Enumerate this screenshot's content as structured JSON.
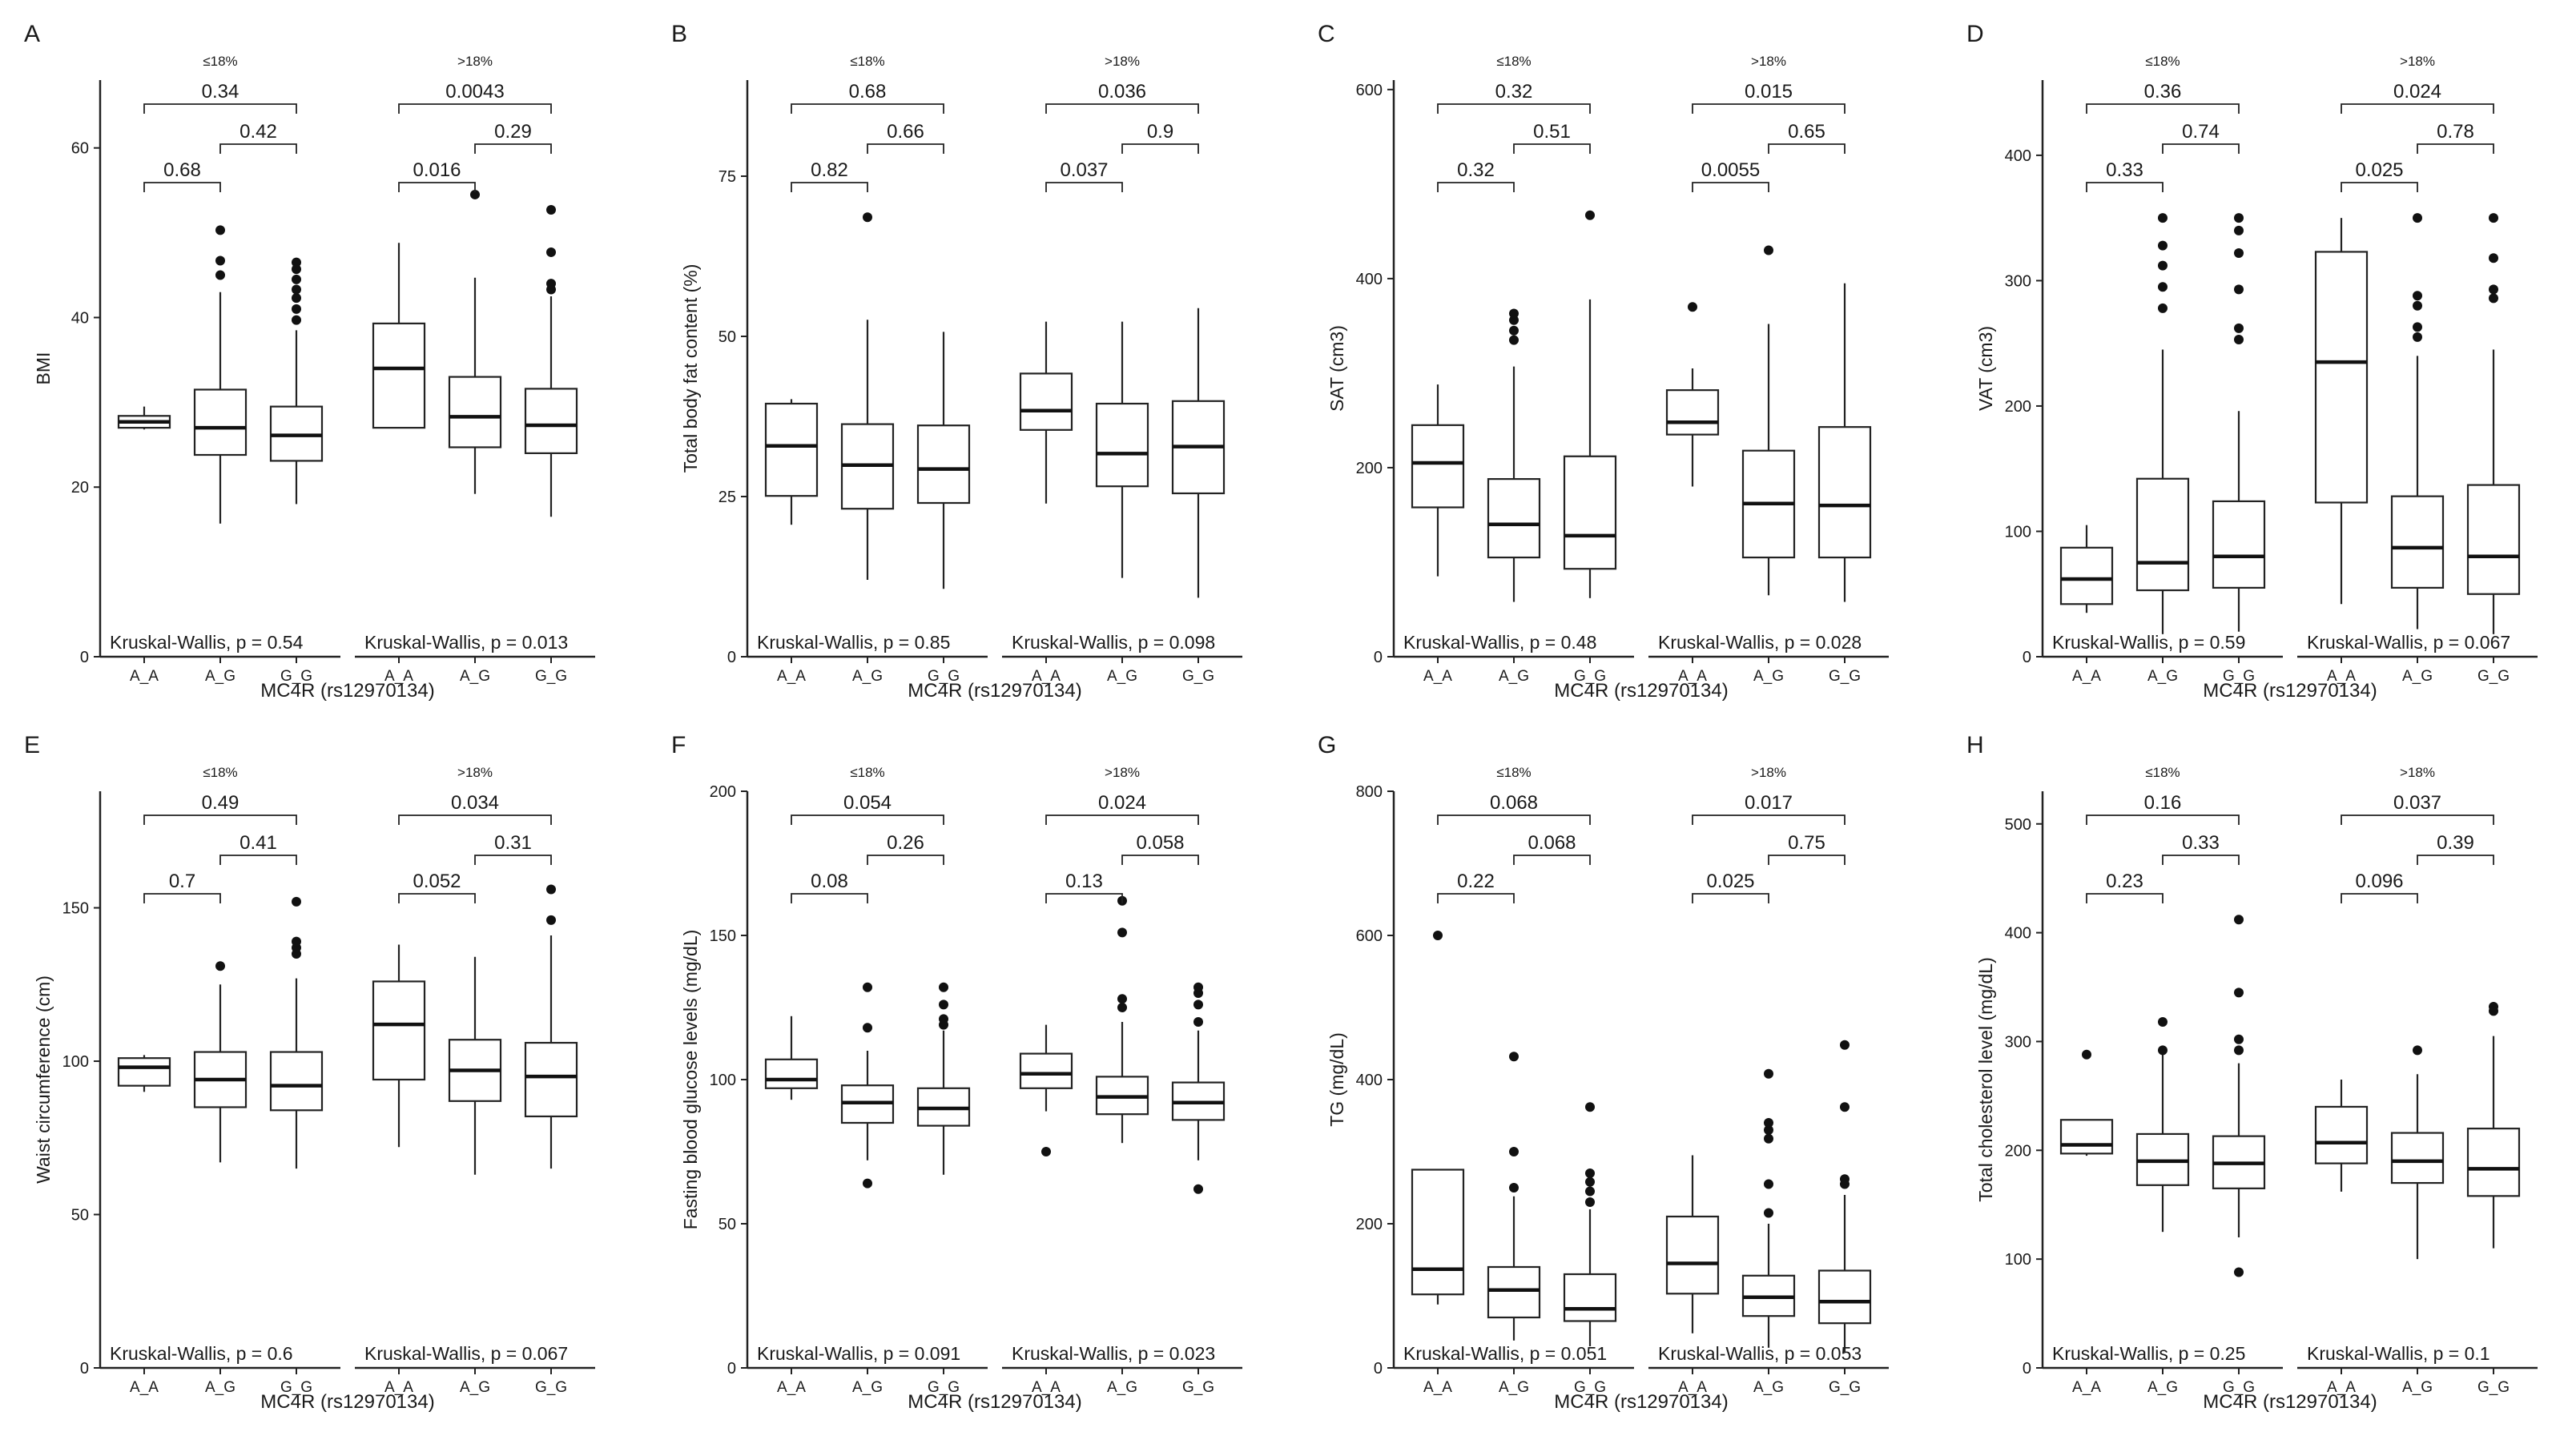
{
  "figure": {
    "x_label": "MC4R (rs12970134)",
    "groups": [
      "A_A",
      "A_G",
      "G_G"
    ],
    "facets": [
      "≤18%",
      ">18%"
    ]
  },
  "chart_data": [
    {
      "type": "box",
      "panel_letter": "A",
      "ylabel": "BMI",
      "ylim": [
        0,
        68
      ],
      "yticks": [
        0,
        20,
        40,
        60
      ],
      "facets": [
        {
          "label": "≤18%",
          "kruskal": "Kruskal-Wallis, p = 0.54",
          "pvals": {
            "p12": "0.68",
            "p23": "0.42",
            "p13": "0.34"
          },
          "boxes": [
            {
              "group": "A_A",
              "min": 26.8,
              "q1": 27.0,
              "median": 27.7,
              "q3": 28.4,
              "max": 29.5,
              "outliers": []
            },
            {
              "group": "A_G",
              "min": 15.7,
              "q1": 23.8,
              "median": 27.0,
              "q3": 31.5,
              "max": 43.0,
              "outliers": [
                45.0,
                46.7,
                50.3
              ]
            },
            {
              "group": "G_G",
              "min": 18.0,
              "q1": 23.1,
              "median": 26.1,
              "q3": 29.5,
              "max": 38.5,
              "outliers": [
                39.7,
                41.0,
                42.3,
                43.3,
                44.5,
                45.7,
                46.5
              ]
            }
          ]
        },
        {
          "label": ">18%",
          "kruskal": "Kruskal-Wallis, p = 0.013",
          "pvals": {
            "p12": "0.016",
            "p23": "0.29",
            "p13": "0.0043"
          },
          "boxes": [
            {
              "group": "A_A",
              "min": 27.0,
              "q1": 27.0,
              "median": 34.0,
              "q3": 39.3,
              "max": 48.8,
              "outliers": []
            },
            {
              "group": "A_G",
              "min": 19.2,
              "q1": 24.7,
              "median": 28.3,
              "q3": 33.0,
              "max": 44.7,
              "outliers": [
                54.5
              ]
            },
            {
              "group": "G_G",
              "min": 16.5,
              "q1": 24.0,
              "median": 27.3,
              "q3": 31.6,
              "max": 42.5,
              "outliers": [
                43.3,
                44.0,
                47.7,
                52.7
              ]
            }
          ]
        }
      ]
    },
    {
      "type": "box",
      "panel_letter": "B",
      "ylabel": "Total body fat content (%)",
      "ylim": [
        0,
        90
      ],
      "yticks": [
        0,
        25,
        50,
        75
      ],
      "facets": [
        {
          "label": "≤18%",
          "kruskal": "Kruskal-Wallis, p = 0.85",
          "pvals": {
            "p12": "0.82",
            "p23": "0.66",
            "p13": "0.68"
          },
          "boxes": [
            {
              "group": "A_A",
              "min": 20.6,
              "q1": 25.1,
              "median": 32.9,
              "q3": 39.5,
              "max": 40.2,
              "outliers": []
            },
            {
              "group": "A_G",
              "min": 12.0,
              "q1": 23.1,
              "median": 29.9,
              "q3": 36.3,
              "max": 52.6,
              "outliers": [
                68.6
              ]
            },
            {
              "group": "G_G",
              "min": 10.6,
              "q1": 24.0,
              "median": 29.3,
              "q3": 36.1,
              "max": 50.7,
              "outliers": []
            }
          ]
        },
        {
          "label": ">18%",
          "kruskal": "Kruskal-Wallis, p = 0.098",
          "pvals": {
            "p12": "0.037",
            "p23": "0.9",
            "p13": "0.036"
          },
          "boxes": [
            {
              "group": "A_A",
              "min": 23.9,
              "q1": 35.4,
              "median": 38.4,
              "q3": 44.2,
              "max": 52.3,
              "outliers": []
            },
            {
              "group": "A_G",
              "min": 12.3,
              "q1": 26.6,
              "median": 31.7,
              "q3": 39.5,
              "max": 52.3,
              "outliers": []
            },
            {
              "group": "G_G",
              "min": 9.2,
              "q1": 25.5,
              "median": 32.8,
              "q3": 39.9,
              "max": 54.4,
              "outliers": []
            }
          ]
        }
      ]
    },
    {
      "type": "box",
      "panel_letter": "C",
      "ylabel": "SAT (cm3)",
      "ylim": [
        0,
        610
      ],
      "yticks": [
        0,
        200,
        400,
        600
      ],
      "facets": [
        {
          "label": "≤18%",
          "kruskal": "Kruskal-Wallis, p = 0.48",
          "pvals": {
            "p12": "0.32",
            "p23": "0.51",
            "p13": "0.32"
          },
          "boxes": [
            {
              "group": "A_A",
              "min": 85,
              "q1": 158,
              "median": 205,
              "q3": 245,
              "max": 288,
              "outliers": []
            },
            {
              "group": "A_G",
              "min": 58,
              "q1": 105,
              "median": 140,
              "q3": 188,
              "max": 307,
              "outliers": [
                335,
                345,
                356,
                363
              ]
            },
            {
              "group": "G_G",
              "min": 62,
              "q1": 93,
              "median": 128,
              "q3": 212,
              "max": 378,
              "outliers": [
                467
              ]
            }
          ]
        },
        {
          "label": ">18%",
          "kruskal": "Kruskal-Wallis, p = 0.028",
          "pvals": {
            "p12": "0.0055",
            "p23": "0.65",
            "p13": "0.015"
          },
          "boxes": [
            {
              "group": "A_A",
              "min": 180,
              "q1": 235,
              "median": 248,
              "q3": 282,
              "max": 305,
              "outliers": [
                370
              ]
            },
            {
              "group": "A_G",
              "min": 65,
              "q1": 105,
              "median": 162,
              "q3": 218,
              "max": 352,
              "outliers": [
                430
              ]
            },
            {
              "group": "G_G",
              "min": 58,
              "q1": 105,
              "median": 160,
              "q3": 243,
              "max": 395,
              "outliers": []
            }
          ]
        }
      ]
    },
    {
      "type": "box",
      "panel_letter": "D",
      "ylabel": "VAT (cm3)",
      "ylim": [
        0,
        460
      ],
      "yticks": [
        0,
        100,
        200,
        300,
        400
      ],
      "facets": [
        {
          "label": "≤18%",
          "kruskal": "Kruskal-Wallis, p = 0.59",
          "pvals": {
            "p12": "0.33",
            "p23": "0.74",
            "p13": "0.36"
          },
          "boxes": [
            {
              "group": "A_A",
              "min": 35,
              "q1": 42,
              "median": 62,
              "q3": 87,
              "max": 105,
              "outliers": []
            },
            {
              "group": "A_G",
              "min": 18,
              "q1": 53,
              "median": 75,
              "q3": 142,
              "max": 245,
              "outliers": [
                278,
                295,
                312,
                328,
                350
              ]
            },
            {
              "group": "G_G",
              "min": 20,
              "q1": 55,
              "median": 80,
              "q3": 124,
              "max": 196,
              "outliers": [
                253,
                262,
                293,
                322,
                340,
                350
              ]
            }
          ]
        },
        {
          "label": ">18%",
          "kruskal": "Kruskal-Wallis, p = 0.067",
          "pvals": {
            "p12": "0.025",
            "p23": "0.78",
            "p13": "0.024"
          },
          "boxes": [
            {
              "group": "A_A",
              "min": 42,
              "q1": 123,
              "median": 235,
              "q3": 323,
              "max": 350,
              "outliers": []
            },
            {
              "group": "A_G",
              "min": 22,
              "q1": 55,
              "median": 87,
              "q3": 128,
              "max": 240,
              "outliers": [
                255,
                263,
                280,
                288,
                350
              ]
            },
            {
              "group": "G_G",
              "min": 18,
              "q1": 50,
              "median": 80,
              "q3": 137,
              "max": 245,
              "outliers": [
                286,
                293,
                318,
                350
              ]
            }
          ]
        }
      ]
    },
    {
      "type": "box",
      "panel_letter": "E",
      "ylabel": "Waist circumference (cm)",
      "ylim": [
        0,
        188
      ],
      "yticks": [
        0,
        50,
        100,
        150
      ],
      "facets": [
        {
          "label": "≤18%",
          "kruskal": "Kruskal-Wallis, p = 0.6",
          "pvals": {
            "p12": "0.7",
            "p23": "0.41",
            "p13": "0.49"
          },
          "boxes": [
            {
              "group": "A_A",
              "min": 90,
              "q1": 92,
              "median": 98,
              "q3": 101,
              "max": 102,
              "outliers": []
            },
            {
              "group": "A_G",
              "min": 67,
              "q1": 85,
              "median": 94,
              "q3": 103,
              "max": 125,
              "outliers": [
                131
              ]
            },
            {
              "group": "G_G",
              "min": 65,
              "q1": 84,
              "median": 92,
              "q3": 103,
              "max": 127,
              "outliers": [
                135,
                137,
                139,
                152
              ]
            }
          ]
        },
        {
          "label": ">18%",
          "kruskal": "Kruskal-Wallis, p = 0.067",
          "pvals": {
            "p12": "0.052",
            "p23": "0.31",
            "p13": "0.034"
          },
          "boxes": [
            {
              "group": "A_A",
              "min": 72,
              "q1": 94,
              "median": 112,
              "q3": 126,
              "max": 138,
              "outliers": []
            },
            {
              "group": "A_G",
              "min": 63,
              "q1": 87,
              "median": 97,
              "q3": 107,
              "max": 134,
              "outliers": []
            },
            {
              "group": "G_G",
              "min": 65,
              "q1": 82,
              "median": 95,
              "q3": 106,
              "max": 141,
              "outliers": [
                146,
                156
              ]
            }
          ]
        }
      ]
    },
    {
      "type": "box",
      "panel_letter": "F",
      "ylabel": "Fasting blood glucose levels (mg/dL)",
      "ylim": [
        0,
        200
      ],
      "yticks": [
        0,
        50,
        100,
        150,
        200
      ],
      "facets": [
        {
          "label": "≤18%",
          "kruskal": "Kruskal-Wallis, p = 0.091",
          "pvals": {
            "p12": "0.08",
            "p23": "0.26",
            "p13": "0.054"
          },
          "boxes": [
            {
              "group": "A_A",
              "min": 93,
              "q1": 97,
              "median": 100,
              "q3": 107,
              "max": 122,
              "outliers": []
            },
            {
              "group": "A_G",
              "min": 72,
              "q1": 85,
              "median": 92,
              "q3": 98,
              "max": 110,
              "outliers": [
                64,
                118,
                132
              ]
            },
            {
              "group": "G_G",
              "min": 67,
              "q1": 84,
              "median": 90,
              "q3": 97,
              "max": 117,
              "outliers": [
                119,
                121,
                126,
                132
              ]
            }
          ]
        },
        {
          "label": ">18%",
          "kruskal": "Kruskal-Wallis, p = 0.023",
          "pvals": {
            "p12": "0.13",
            "p23": "0.058",
            "p13": "0.024"
          },
          "boxes": [
            {
              "group": "A_A",
              "min": 89,
              "q1": 97,
              "median": 102,
              "q3": 109,
              "max": 119,
              "outliers": [
                75
              ]
            },
            {
              "group": "A_G",
              "min": 78,
              "q1": 88,
              "median": 94,
              "q3": 101,
              "max": 120,
              "outliers": [
                125,
                128,
                151,
                162
              ]
            },
            {
              "group": "G_G",
              "min": 72,
              "q1": 86,
              "median": 92,
              "q3": 99,
              "max": 117,
              "outliers": [
                62,
                120,
                126,
                130,
                132
              ]
            }
          ]
        }
      ]
    },
    {
      "type": "box",
      "panel_letter": "G",
      "ylabel": "TG (mg/dL)",
      "ylim": [
        0,
        800
      ],
      "yticks": [
        0,
        200,
        400,
        600,
        800
      ],
      "facets": [
        {
          "label": "≤18%",
          "kruskal": "Kruskal-Wallis, p = 0.051",
          "pvals": {
            "p12": "0.22",
            "p23": "0.068",
            "p13": "0.068"
          },
          "boxes": [
            {
              "group": "A_A",
              "min": 88,
              "q1": 102,
              "median": 137,
              "q3": 275,
              "max": 275,
              "outliers": [
                600
              ]
            },
            {
              "group": "A_G",
              "min": 38,
              "q1": 70,
              "median": 108,
              "q3": 140,
              "max": 238,
              "outliers": [
                250,
                300,
                432
              ]
            },
            {
              "group": "G_G",
              "min": 30,
              "q1": 65,
              "median": 82,
              "q3": 130,
              "max": 220,
              "outliers": [
                230,
                245,
                258,
                270,
                362
              ]
            }
          ]
        },
        {
          "label": ">18%",
          "kruskal": "Kruskal-Wallis, p = 0.053",
          "pvals": {
            "p12": "0.025",
            "p23": "0.75",
            "p13": "0.017"
          },
          "boxes": [
            {
              "group": "A_A",
              "min": 48,
              "q1": 103,
              "median": 145,
              "q3": 210,
              "max": 295,
              "outliers": []
            },
            {
              "group": "A_G",
              "min": 28,
              "q1": 72,
              "median": 98,
              "q3": 128,
              "max": 200,
              "outliers": [
                215,
                255,
                318,
                330,
                340,
                408
              ]
            },
            {
              "group": "G_G",
              "min": 22,
              "q1": 62,
              "median": 92,
              "q3": 135,
              "max": 240,
              "outliers": [
                255,
                262,
                362,
                448
              ]
            }
          ]
        }
      ]
    },
    {
      "type": "box",
      "panel_letter": "H",
      "ylabel": "Total cholesterol level (mg/dL)",
      "ylim": [
        0,
        530
      ],
      "yticks": [
        0,
        100,
        200,
        300,
        400,
        500
      ],
      "facets": [
        {
          "label": "≤18%",
          "kruskal": "Kruskal-Wallis, p = 0.25",
          "pvals": {
            "p12": "0.23",
            "p23": "0.33",
            "p13": "0.16"
          },
          "boxes": [
            {
              "group": "A_A",
              "min": 195,
              "q1": 197,
              "median": 205,
              "q3": 228,
              "max": 228,
              "outliers": [
                288
              ]
            },
            {
              "group": "A_G",
              "min": 125,
              "q1": 168,
              "median": 190,
              "q3": 215,
              "max": 288,
              "outliers": [
                292,
                318
              ]
            },
            {
              "group": "G_G",
              "min": 120,
              "q1": 165,
              "median": 188,
              "q3": 213,
              "max": 280,
              "outliers": [
                88,
                292,
                302,
                345,
                412
              ]
            }
          ]
        },
        {
          "label": ">18%",
          "kruskal": "Kruskal-Wallis, p = 0.1",
          "pvals": {
            "p12": "0.096",
            "p23": "0.39",
            "p13": "0.037"
          },
          "boxes": [
            {
              "group": "A_A",
              "min": 162,
              "q1": 188,
              "median": 207,
              "q3": 240,
              "max": 265,
              "outliers": []
            },
            {
              "group": "A_G",
              "min": 100,
              "q1": 170,
              "median": 190,
              "q3": 216,
              "max": 270,
              "outliers": [
                292
              ]
            },
            {
              "group": "G_G",
              "min": 110,
              "q1": 158,
              "median": 183,
              "q3": 220,
              "max": 305,
              "outliers": [
                328,
                332
              ]
            }
          ]
        }
      ]
    }
  ]
}
